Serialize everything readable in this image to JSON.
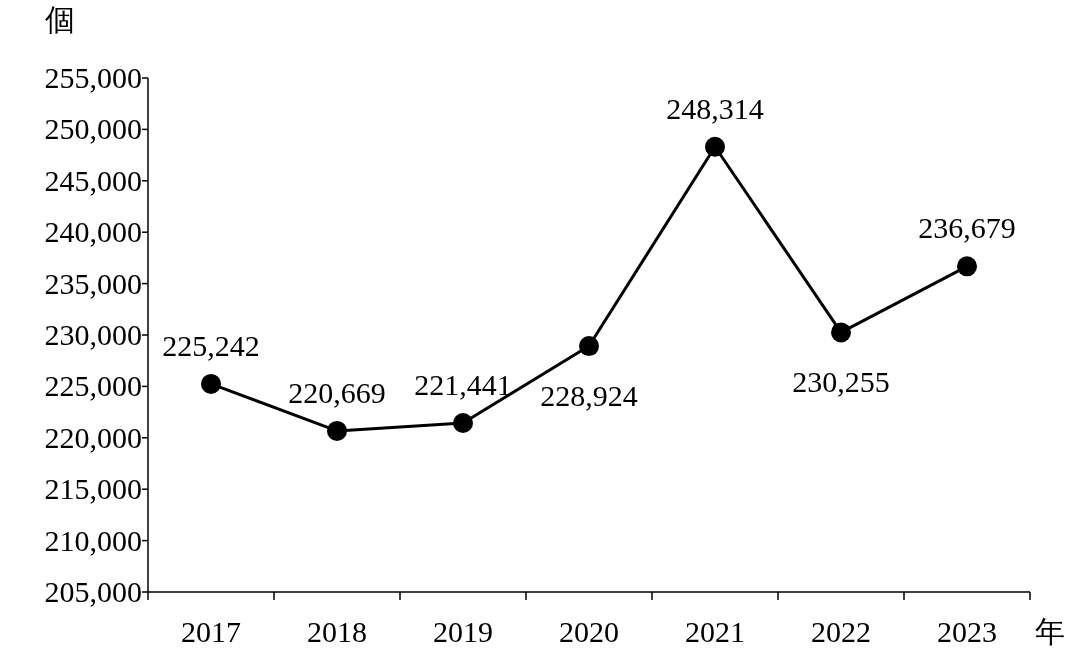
{
  "chart_data": {
    "type": "line",
    "xlabel": "年",
    "ylabel": "個",
    "categories": [
      "2017",
      "2018",
      "2019",
      "2020",
      "2021",
      "2022",
      "2023"
    ],
    "series": [
      {
        "color": "#000000",
        "values": [
          225242,
          220669,
          221441,
          228924,
          248314,
          230255,
          236679
        ],
        "value_labels": [
          "225,242",
          "220,669",
          "221,441",
          "228,924",
          "248,314",
          "230,255",
          "236,679"
        ]
      }
    ],
    "ylim": [
      205000,
      255000
    ],
    "yticks": [
      {
        "value": 205000,
        "label": "205,000"
      },
      {
        "value": 210000,
        "label": "210,000"
      },
      {
        "value": 215000,
        "label": "215,000"
      },
      {
        "value": 220000,
        "label": "220,000"
      },
      {
        "value": 225000,
        "label": "225,000"
      },
      {
        "value": 230000,
        "label": "230,000"
      },
      {
        "value": 235000,
        "label": "235,000"
      },
      {
        "value": 240000,
        "label": "240,000"
      },
      {
        "value": 245000,
        "label": "245,000"
      },
      {
        "value": 250000,
        "label": "250,000"
      },
      {
        "value": 255000,
        "label": "255,000"
      }
    ],
    "marker": "circle",
    "line_style": "solid",
    "grid": false
  }
}
